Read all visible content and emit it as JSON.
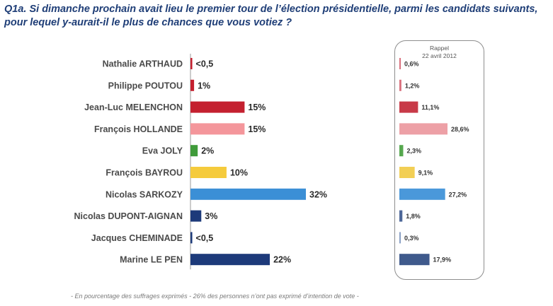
{
  "question": {
    "line1": "Q1a. Si dimanche prochain avait lieu le premier tour de l’élection présidentielle, parmi les candidats suivants,",
    "line2": "pour lequel y-aurait-il le plus de chances que vous votiez ?"
  },
  "rappel": {
    "title": "Rappel",
    "date": "22 avril 2012"
  },
  "footnote": "- En pourcentage des suffrages exprimés - 26% des personnes n’ont pas exprimé d’intention de vote -",
  "chart_data": [
    {
      "type": "bar",
      "orientation": "horizontal",
      "categories": [
        "Nathalie ARTHAUD",
        "Philippe POUTOU",
        "Jean-Luc MELENCHON",
        "François HOLLANDE",
        "Eva JOLY",
        "François BAYROU",
        "Nicolas SARKOZY",
        "Nicolas DUPONT-AIGNAN",
        "Jacques CHEMINADE",
        "Marine LE PEN"
      ],
      "values": [
        0.5,
        1,
        15,
        15,
        2,
        10,
        32,
        3,
        0.5,
        22
      ],
      "value_labels": [
        "<0,5",
        "1%",
        "15%",
        "15%",
        "2%",
        "10%",
        "32%",
        "3%",
        "<0,5",
        "22%"
      ],
      "colors": [
        "#c4202f",
        "#c4202f",
        "#c4202f",
        "#f4969b",
        "#3f9b3a",
        "#f5cb3c",
        "#3b8fd6",
        "#1d3a7a",
        "#1d3a7a",
        "#1d3a7a"
      ],
      "xlim": [
        0,
        32
      ]
    },
    {
      "type": "bar",
      "orientation": "horizontal",
      "title": "Rappel",
      "subtitle": "22 avril 2012",
      "categories": [
        "Nathalie ARTHAUD",
        "Philippe POUTOU",
        "Jean-Luc MELENCHON",
        "François HOLLANDE",
        "Eva JOLY",
        "François BAYROU",
        "Nicolas SARKOZY",
        "Nicolas DUPONT-AIGNAN",
        "Jacques CHEMINADE",
        "Marine LE PEN"
      ],
      "values": [
        0.6,
        1.2,
        11.1,
        28.6,
        2.3,
        9.1,
        27.2,
        1.8,
        0.3,
        17.9
      ],
      "value_labels": [
        "0,6%",
        "1,2%",
        "11,1%",
        "28,6%",
        "2,3%",
        "9,1%",
        "27,2%",
        "1,8%",
        "0,3%",
        "17,9%"
      ],
      "colors": [
        "#d9707d",
        "#d9707d",
        "#c83a48",
        "#eda0a6",
        "#56a84f",
        "#f2cf55",
        "#4a98da",
        "#4e6899",
        "#8aa0c4",
        "#3f5a8c"
      ],
      "xlim": [
        0,
        28.6
      ]
    }
  ]
}
